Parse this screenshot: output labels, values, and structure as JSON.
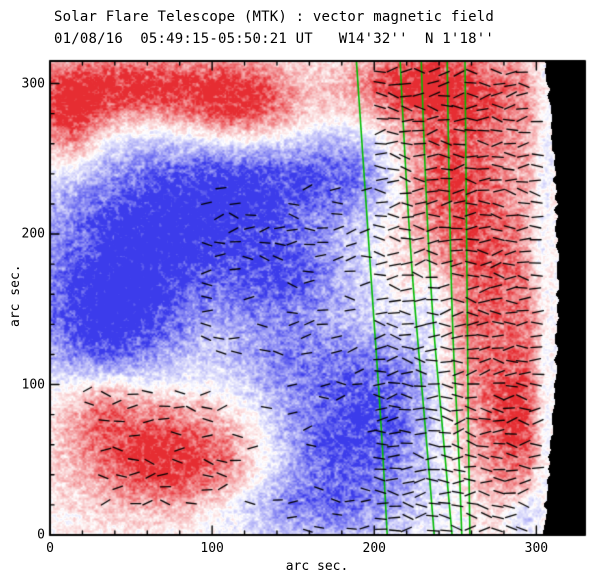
{
  "header": {
    "title": "Solar Flare Telescope (MTK) : vector magnetic field",
    "subtitle": "01/08/16  05:49:15-05:50:21 UT   W14'32''  N 1'18''"
  },
  "chart_data": {
    "type": "heatmap",
    "title": "Solar Flare Telescope (MTK) : vector magnetic field",
    "subtitle": "01/08/16  05:49:15-05:50:21 UT   W14'32''  N 1'18''",
    "xlabel": "arc sec.",
    "ylabel": "arc sec.",
    "xlim": [
      0,
      330
    ],
    "ylim": [
      0,
      315
    ],
    "xticks": [
      0,
      100,
      200,
      300
    ],
    "yticks": [
      0,
      100,
      200,
      300
    ],
    "minor_tick_interval": 20,
    "legend": "red = positive line-of-sight polarity, blue = negative polarity, black segments = transverse field vectors, green lines = contours, black crescent at right = off-limb sky",
    "colormap": {
      "positive": "#e62d32",
      "negative": "#3c3ceb",
      "zero": "#ffffff"
    },
    "contour_color": "#00bc00",
    "vector_color": "#000000",
    "limb_color": "#000000",
    "polarity_blobs": [
      {
        "x": 50,
        "y": 297,
        "sx": 38,
        "sy": 16,
        "amp": 1.0
      },
      {
        "x": 118,
        "y": 287,
        "sx": 26,
        "sy": 20,
        "amp": 0.95
      },
      {
        "x": 12,
        "y": 278,
        "sx": 14,
        "sy": 22,
        "amp": 0.8
      },
      {
        "x": 72,
        "y": 52,
        "sx": 38,
        "sy": 24,
        "amp": 1.05
      },
      {
        "x": 33,
        "y": 85,
        "sx": 18,
        "sy": 16,
        "amp": 0.5
      },
      {
        "x": 262,
        "y": 175,
        "sx": 26,
        "sy": 65,
        "amp": 0.8
      },
      {
        "x": 252,
        "y": 295,
        "sx": 38,
        "sy": 22,
        "amp": 0.75
      },
      {
        "x": 287,
        "y": 70,
        "sx": 20,
        "sy": 35,
        "amp": 0.7
      },
      {
        "x": 240,
        "y": 240,
        "sx": 22,
        "sy": 25,
        "amp": 0.5
      },
      {
        "x": 300,
        "y": 150,
        "sx": 10,
        "sy": 80,
        "amp": 0.45
      },
      {
        "x": 215,
        "y": 300,
        "sx": 25,
        "sy": 14,
        "amp": 0.5
      },
      {
        "x": 55,
        "y": 195,
        "sx": 42,
        "sy": 38,
        "amp": -1.05
      },
      {
        "x": 120,
        "y": 230,
        "sx": 38,
        "sy": 26,
        "amp": -0.85
      },
      {
        "x": 35,
        "y": 140,
        "sx": 30,
        "sy": 26,
        "amp": -0.9
      },
      {
        "x": 145,
        "y": 170,
        "sx": 30,
        "sy": 24,
        "amp": -0.75
      },
      {
        "x": 185,
        "y": 240,
        "sx": 26,
        "sy": 20,
        "amp": -0.55
      },
      {
        "x": 182,
        "y": 60,
        "sx": 34,
        "sy": 30,
        "amp": -0.9
      },
      {
        "x": 212,
        "y": 105,
        "sx": 24,
        "sy": 26,
        "amp": -0.55
      },
      {
        "x": 150,
        "y": 115,
        "sx": 28,
        "sy": 18,
        "amp": -0.5
      },
      {
        "x": 160,
        "y": 18,
        "sx": 40,
        "sy": 14,
        "amp": -0.45
      },
      {
        "x": 306,
        "y": 95,
        "sx": 7,
        "sy": 45,
        "amp": -0.75
      },
      {
        "x": 301,
        "y": 195,
        "sx": 6,
        "sy": 28,
        "amp": -0.6
      },
      {
        "x": 309,
        "y": 255,
        "sx": 6,
        "sy": 25,
        "amp": -0.55
      },
      {
        "x": 240,
        "y": 155,
        "sx": 11,
        "sy": 22,
        "amp": -0.5
      },
      {
        "x": 296,
        "y": 15,
        "sx": 9,
        "sy": 12,
        "amp": -0.5
      }
    ],
    "green_contours": [
      {
        "points": [
          [
            315,
            189
          ],
          [
            200,
            196
          ],
          [
            80,
            204
          ],
          [
            0,
            208
          ]
        ]
      },
      {
        "points": [
          [
            315,
            216
          ],
          [
            200,
            221
          ],
          [
            80,
            231
          ],
          [
            0,
            237
          ]
        ]
      },
      {
        "points": [
          [
            315,
            229
          ],
          [
            180,
            233
          ],
          [
            60,
            243
          ],
          [
            0,
            248
          ]
        ]
      },
      {
        "points": [
          [
            315,
            245
          ],
          [
            160,
            247
          ],
          [
            60,
            252
          ],
          [
            0,
            254
          ]
        ]
      },
      {
        "points": [
          [
            315,
            256
          ],
          [
            150,
            257
          ],
          [
            0,
            259
          ]
        ]
      }
    ],
    "vector_patches": [
      {
        "x0": 204,
        "x1": 316,
        "y0": 4,
        "y1": 312,
        "step": 8,
        "prob": 0.92,
        "len": 11,
        "spread": 28
      },
      {
        "x0": 96,
        "x1": 202,
        "y0": 122,
        "y1": 238,
        "step": 9,
        "prob": 0.45,
        "len": 10,
        "spread": 32
      },
      {
        "x0": 34,
        "x1": 136,
        "y0": 22,
        "y1": 96,
        "step": 9,
        "prob": 0.5,
        "len": 10,
        "spread": 32
      },
      {
        "x0": 140,
        "x1": 198,
        "y0": 4,
        "y1": 34,
        "step": 9,
        "prob": 0.4,
        "len": 9,
        "spread": 30
      },
      {
        "x0": 150,
        "x1": 204,
        "y0": 60,
        "y1": 112,
        "step": 10,
        "prob": 0.32,
        "len": 9,
        "spread": 30
      },
      {
        "x0": 6,
        "x1": 46,
        "y0": 88,
        "y1": 112,
        "step": 9,
        "prob": 0.35,
        "len": 9,
        "spread": 30
      }
    ],
    "limb": {
      "x_mid": 313,
      "y_mid": 165,
      "half": 165,
      "bow": 9
    }
  }
}
